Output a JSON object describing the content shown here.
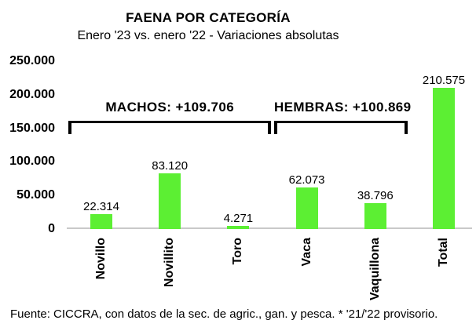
{
  "chart": {
    "title": "FAENA POR CATEGORÍA",
    "subtitle": "Enero '23 vs. enero '22 - Variaciones absolutas"
  },
  "chart_data": {
    "type": "bar",
    "title": "FAENA POR CATEGORÍA",
    "subtitle": "Enero '23 vs. enero '22 - Variaciones absolutas",
    "categories": [
      "Novillo",
      "Novillito",
      "Toro",
      "Vaca",
      "Vaquillona",
      "Total"
    ],
    "values": [
      22314,
      83120,
      4271,
      62073,
      38796,
      210575
    ],
    "value_labels": [
      "22.314",
      "83.120",
      "4.271",
      "62.073",
      "38.796",
      "210.575"
    ],
    "xlabel": "",
    "ylabel": "",
    "ylim": [
      0,
      250000
    ],
    "grid": false,
    "legend": false,
    "bar_color": "#5CEF33",
    "axis_line_color": "#C9C9C9",
    "text_color": "#000000",
    "y_axis": {
      "ticks": [
        {
          "label": "250.000",
          "value": 250000
        },
        {
          "label": "200.000",
          "value": 200000
        },
        {
          "label": "150.000",
          "value": 150000
        },
        {
          "label": "100.000",
          "value": 100000
        },
        {
          "label": "50.000",
          "value": 50000
        },
        {
          "label": "0",
          "value": 0
        }
      ]
    },
    "annotations": [
      {
        "label": "MACHOS: +109.706",
        "from_index": 0,
        "to_index": 2
      },
      {
        "label": "HEMBRAS: +100.869",
        "from_index": 3,
        "to_index": 4
      }
    ]
  },
  "footer": {
    "source_note": "Fuente: CICCRA, con datos de la sec. de agric., gan. y pesca. * '21/'22 provisorio."
  }
}
